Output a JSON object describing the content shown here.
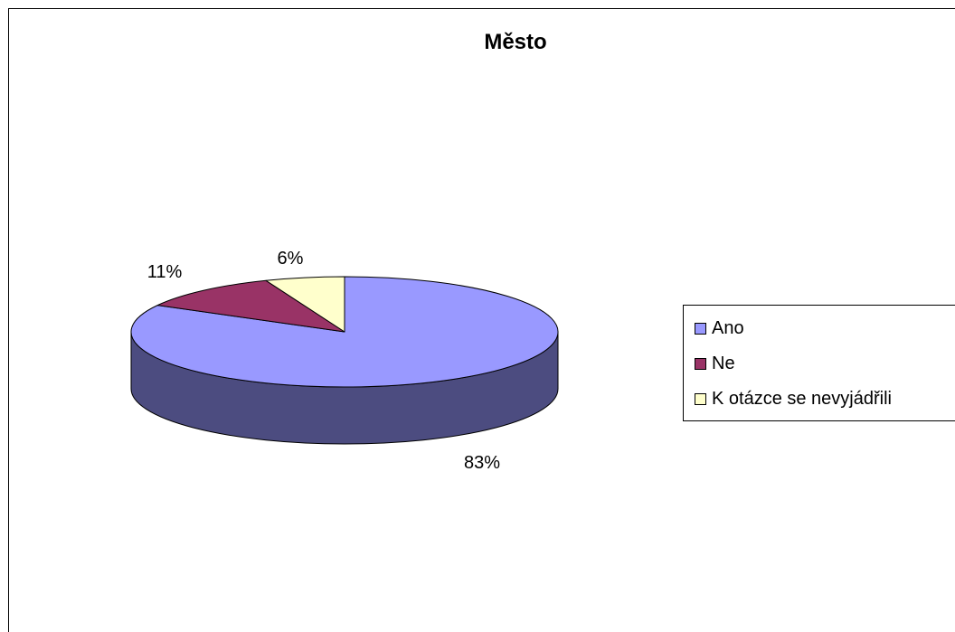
{
  "chart_data": {
    "type": "pie",
    "title": "Město",
    "categories": [
      "Ano",
      "Ne",
      "K otázce se nevyjádřili"
    ],
    "values": [
      83,
      11,
      6
    ],
    "data_labels": [
      "83%",
      "11%",
      "6%"
    ],
    "colors": [
      "#9999ff",
      "#993366",
      "#ffffcc"
    ],
    "side_colors": [
      "#4c4c80",
      "#4c1a33",
      "#808066"
    ],
    "legend_position": "right",
    "three_d": true
  }
}
